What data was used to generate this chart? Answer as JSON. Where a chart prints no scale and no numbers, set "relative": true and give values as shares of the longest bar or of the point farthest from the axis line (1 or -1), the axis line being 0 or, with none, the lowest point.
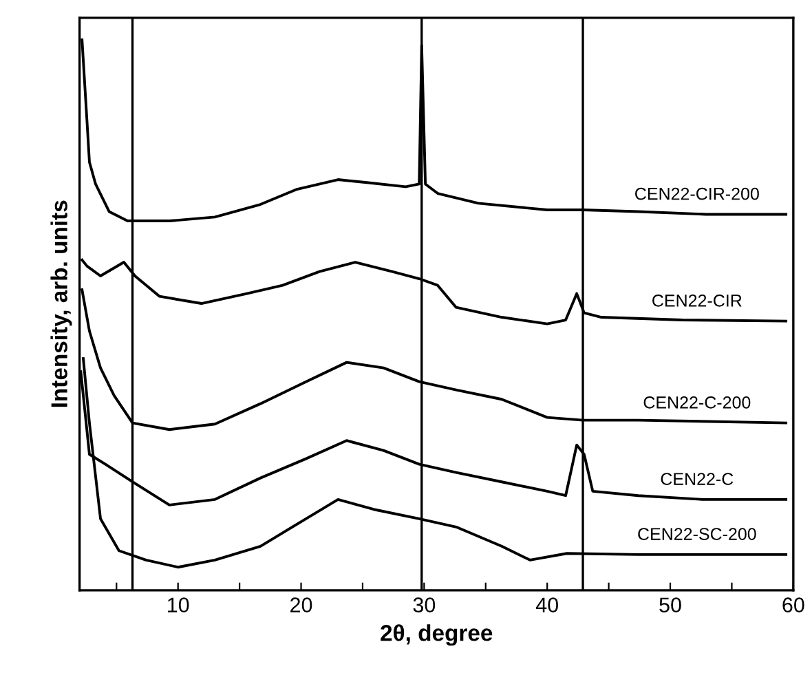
{
  "chart_data": {
    "type": "line",
    "relative": true,
    "xlabel": "2θ, degree",
    "ylabel": "Intensity, arb. units",
    "xlim": [
      2,
      60
    ],
    "xticks": [
      {
        "value": 5,
        "label": null
      },
      10,
      {
        "value": 15,
        "label": null
      },
      20,
      {
        "value": 25,
        "label": null
      },
      30,
      {
        "value": 35,
        "label": null
      },
      40,
      {
        "value": 45,
        "label": null
      },
      50,
      {
        "value": 55,
        "label": null
      },
      60
    ],
    "tick_labels": "x",
    "grid": false,
    "legend": false,
    "marker": "none",
    "line_style": "solid",
    "ref_lines": [
      {
        "axis": "x",
        "value": 6.3,
        "color": "#000000"
      },
      {
        "axis": "x",
        "value": 29.8,
        "color": "#000000"
      },
      {
        "axis": "x",
        "value": 42.9,
        "color": "#000000"
      }
    ],
    "series": [
      {
        "name": "CEN22-CIR-200",
        "color": "#000000",
        "x": [
          2.2,
          2.6,
          2.8,
          3.3,
          4.4,
          5.9,
          9.3,
          13,
          16.7,
          19.6,
          23,
          25.2,
          28.5,
          29.6,
          29.8,
          30.1,
          31.1,
          34.4,
          40,
          42.9,
          47.4,
          52.9,
          59.4
        ],
        "values": [
          1.0,
          0.853,
          0.778,
          0.738,
          0.688,
          0.671,
          0.671,
          0.678,
          0.701,
          0.728,
          0.746,
          0.741,
          0.733,
          0.738,
          0.99,
          0.738,
          0.721,
          0.703,
          0.691,
          0.691,
          0.688,
          0.683,
          0.683
        ]
      },
      {
        "name": "CEN22-CIR",
        "color": "#000000",
        "x": [
          2.2,
          2.6,
          3.7,
          5.6,
          6.5,
          8.5,
          11.9,
          15.6,
          18.5,
          21.5,
          24.4,
          27.4,
          29.6,
          31.1,
          32.6,
          36.3,
          40,
          41.5,
          42.4,
          43,
          44.4,
          51,
          59.4
        ],
        "values": [
          0.6,
          0.589,
          0.571,
          0.596,
          0.571,
          0.534,
          0.521,
          0.539,
          0.554,
          0.579,
          0.596,
          0.579,
          0.566,
          0.554,
          0.514,
          0.496,
          0.484,
          0.491,
          0.539,
          0.504,
          0.496,
          0.491,
          0.489
        ]
      },
      {
        "name": "CEN22-C-200",
        "color": "#000000",
        "x": [
          2.2,
          2.8,
          3.7,
          4.8,
          6.3,
          9.3,
          13,
          16.7,
          20.4,
          23.7,
          26.7,
          29.6,
          32.6,
          36.3,
          40,
          42.9,
          47.4,
          59.4
        ],
        "values": [
          0.546,
          0.471,
          0.404,
          0.354,
          0.304,
          0.292,
          0.302,
          0.339,
          0.379,
          0.414,
          0.404,
          0.379,
          0.364,
          0.347,
          0.314,
          0.309,
          0.309,
          0.304
        ]
      },
      {
        "name": "CEN22-C",
        "color": "#000000",
        "x": [
          2.1,
          2.8,
          4.1,
          6.3,
          9.3,
          13,
          16.7,
          20.4,
          23.7,
          26.7,
          29.6,
          32.6,
          36.3,
          40,
          41.5,
          42.4,
          43,
          43.7,
          47.4,
          52.6,
          59.4
        ],
        "values": [
          0.397,
          0.247,
          0.229,
          0.197,
          0.155,
          0.165,
          0.204,
          0.239,
          0.272,
          0.254,
          0.229,
          0.214,
          0.197,
          0.18,
          0.172,
          0.264,
          0.247,
          0.18,
          0.172,
          0.165,
          0.165
        ]
      },
      {
        "name": "CEN22-SC-200",
        "color": "#000000",
        "x": [
          2.3,
          2.8,
          3.7,
          5.2,
          7.4,
          10,
          13,
          16.7,
          20.4,
          23,
          25.9,
          29.6,
          32.6,
          36.3,
          38.6,
          41.6,
          47.4,
          59.4
        ],
        "values": [
          0.421,
          0.304,
          0.13,
          0.072,
          0.055,
          0.042,
          0.055,
          0.08,
          0.13,
          0.165,
          0.147,
          0.13,
          0.115,
          0.08,
          0.055,
          0.067,
          0.065,
          0.065
        ]
      }
    ]
  }
}
